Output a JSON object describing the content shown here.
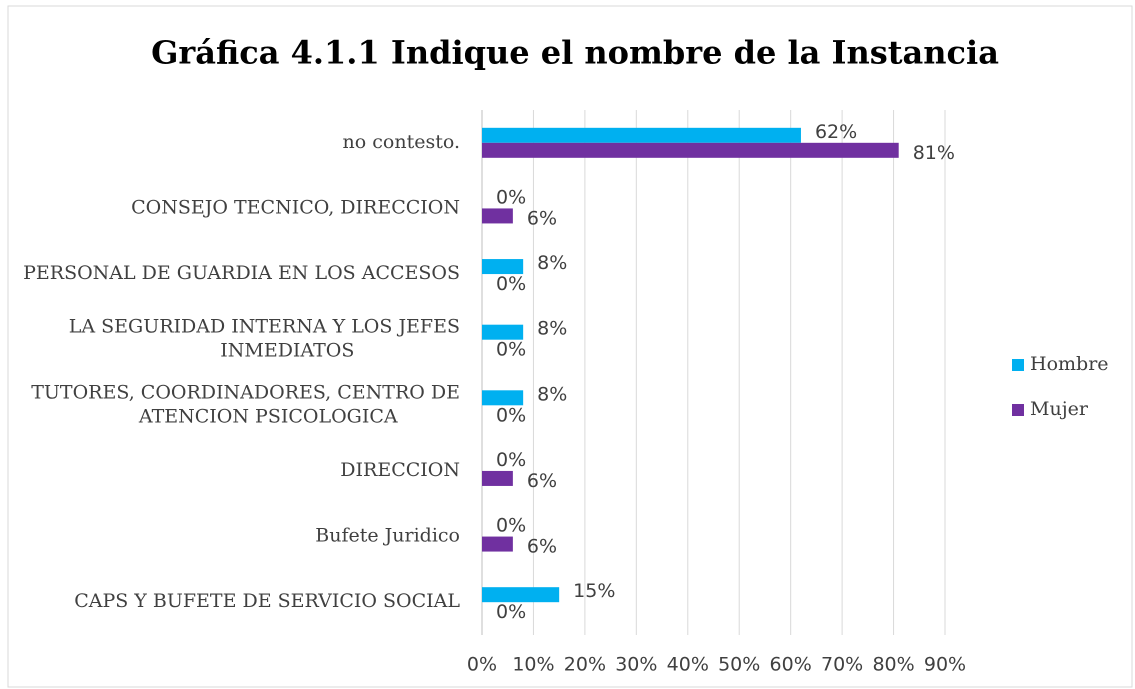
{
  "chart_data": {
    "type": "hbar",
    "title": "Gráfica 4.1.1 Indique el nombre de la Instancia",
    "categories": [
      "no contesto.",
      "CONSEJO TECNICO, DIRECCION",
      "PERSONAL DE GUARDIA EN LOS ACCESOS",
      "LA SEGURIDAD INTERNA Y LOS JEFES INMEDIATOS",
      "TUTORES, COORDINADORES, CENTRO DE ATENCION PSICOLOGICA",
      "DIRECCION",
      "Bufete Juridico",
      "CAPS Y BUFETE DE SERVICIO SOCIAL"
    ],
    "series": [
      {
        "name": "Hombre",
        "color": "#00b0f0",
        "values": [
          62,
          0,
          8,
          8,
          8,
          0,
          0,
          15
        ],
        "value_labels": [
          "62%",
          "0%",
          "8%",
          "8%",
          "8%",
          "0%",
          "0%",
          "15%"
        ]
      },
      {
        "name": "Mujer",
        "color": "#7030a0",
        "values": [
          81,
          6,
          0,
          0,
          0,
          6,
          6,
          0
        ],
        "value_labels": [
          "81%",
          "6%",
          "0%",
          "0%",
          "0%",
          "6%",
          "6%",
          "0%"
        ]
      }
    ],
    "xlim": [
      0,
      90
    ],
    "xticks": [
      {
        "value": 0,
        "label": "0%"
      },
      {
        "value": 10,
        "label": "10%"
      },
      {
        "value": 20,
        "label": "20%"
      },
      {
        "value": 30,
        "label": "30%"
      },
      {
        "value": 40,
        "label": "40%"
      },
      {
        "value": 50,
        "label": "50%"
      },
      {
        "value": 60,
        "label": "60%"
      },
      {
        "value": 70,
        "label": "70%"
      },
      {
        "value": 80,
        "label": "80%"
      },
      {
        "value": 90,
        "label": "90%"
      }
    ],
    "grid": true,
    "legend": "right"
  }
}
